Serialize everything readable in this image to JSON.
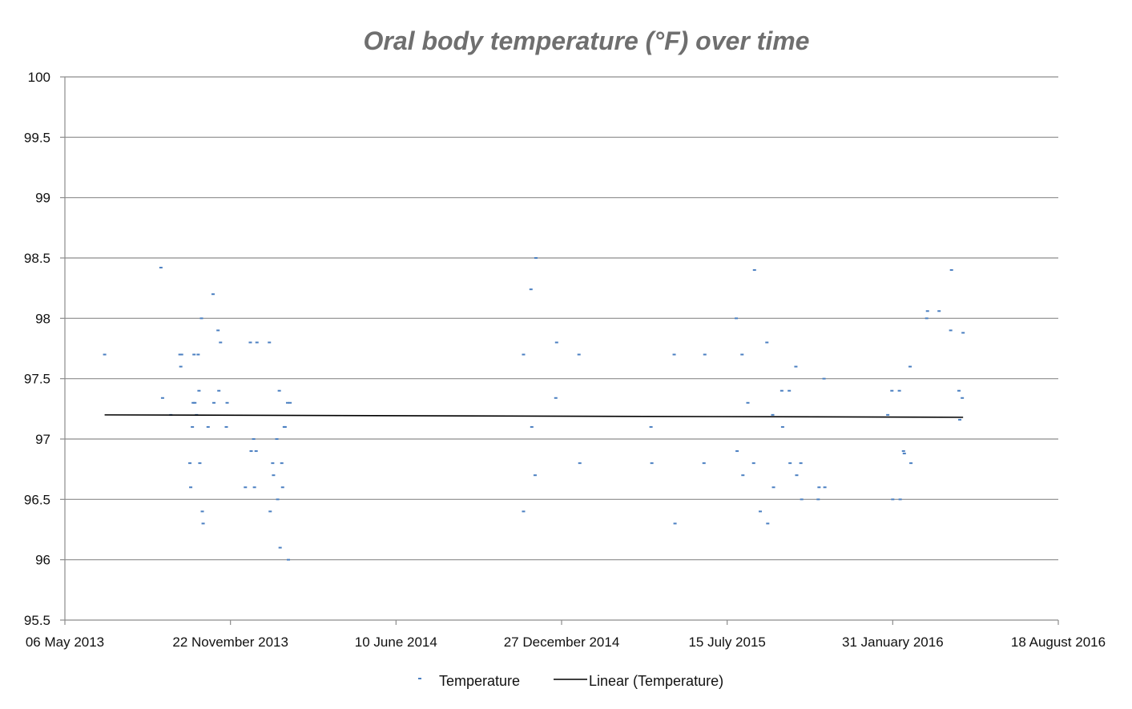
{
  "chart_data": {
    "type": "scatter",
    "title": "Oral body temperature (°F) over time",
    "xlabel": "",
    "ylabel": "",
    "ylim": [
      95.5,
      100
    ],
    "yticks": [
      "95.5",
      "96",
      "96.5",
      "97",
      "97.5",
      "98",
      "98.5",
      "99",
      "99.5",
      "100"
    ],
    "xlim": [
      "2013-05-06",
      "2016-08-18"
    ],
    "xticks": [
      {
        "date": "2013-05-06",
        "label": "06 May 2013"
      },
      {
        "date": "2013-11-22",
        "label": "22 November 2013"
      },
      {
        "date": "2014-06-10",
        "label": "10 June 2014"
      },
      {
        "date": "2014-12-27",
        "label": "27 December 2014"
      },
      {
        "date": "2015-07-15",
        "label": "15 July 2015"
      },
      {
        "date": "2016-01-31",
        "label": "31 January 2016"
      },
      {
        "date": "2016-08-18",
        "label": "18 August 2016"
      }
    ],
    "grid": true,
    "legend_position": "bottom",
    "colors": {
      "marker": "#4a7fc1",
      "trendline": "#000000",
      "grid": "#8c8c8c"
    },
    "series": [
      {
        "name": "Temperature",
        "type": "scatter",
        "points": [
          [
            "2013-06-23",
            97.7
          ],
          [
            "2013-08-30",
            98.42
          ],
          [
            "2013-09-01",
            97.34
          ],
          [
            "2013-09-11",
            97.2
          ],
          [
            "2013-09-22",
            97.7
          ],
          [
            "2013-09-23",
            97.6
          ],
          [
            "2013-09-24",
            97.7
          ],
          [
            "2013-10-04",
            96.8
          ],
          [
            "2013-10-05",
            96.6
          ],
          [
            "2013-10-07",
            97.1
          ],
          [
            "2013-10-08",
            97.3
          ],
          [
            "2013-10-09",
            97.7
          ],
          [
            "2013-10-10",
            97.3
          ],
          [
            "2013-10-12",
            97.2
          ],
          [
            "2013-10-14",
            97.7
          ],
          [
            "2013-10-15",
            97.4
          ],
          [
            "2013-10-16",
            96.8
          ],
          [
            "2013-10-18",
            98.0
          ],
          [
            "2013-10-19",
            96.4
          ],
          [
            "2013-10-20",
            96.3
          ],
          [
            "2013-10-26",
            97.1
          ],
          [
            "2013-11-01",
            98.2
          ],
          [
            "2013-11-02",
            97.3
          ],
          [
            "2013-11-07",
            97.9
          ],
          [
            "2013-11-08",
            97.4
          ],
          [
            "2013-11-10",
            97.8
          ],
          [
            "2013-11-17",
            97.1
          ],
          [
            "2013-11-18",
            97.3
          ],
          [
            "2013-12-10",
            96.6
          ],
          [
            "2013-12-16",
            97.8
          ],
          [
            "2013-12-17",
            96.9
          ],
          [
            "2013-12-20",
            97.0
          ],
          [
            "2013-12-21",
            96.6
          ],
          [
            "2013-12-23",
            96.9
          ],
          [
            "2013-12-24",
            97.8
          ],
          [
            "2014-01-08",
            97.8
          ],
          [
            "2014-01-09",
            96.4
          ],
          [
            "2014-01-12",
            96.8
          ],
          [
            "2014-01-13",
            96.7
          ],
          [
            "2014-01-17",
            97.0
          ],
          [
            "2014-01-18",
            96.5
          ],
          [
            "2014-01-20",
            97.4
          ],
          [
            "2014-01-21",
            96.1
          ],
          [
            "2014-01-23",
            96.8
          ],
          [
            "2014-01-24",
            96.6
          ],
          [
            "2014-01-26",
            97.1
          ],
          [
            "2014-01-27",
            97.1
          ],
          [
            "2014-01-30",
            97.3
          ],
          [
            "2014-01-31",
            96.0
          ],
          [
            "2014-02-02",
            97.3
          ],
          [
            "2014-11-11",
            97.7
          ],
          [
            "2014-11-11",
            96.4
          ],
          [
            "2014-11-20",
            98.24
          ],
          [
            "2014-11-21",
            97.1
          ],
          [
            "2014-11-25",
            96.7
          ],
          [
            "2014-11-26",
            98.5
          ],
          [
            "2014-12-20",
            97.34
          ],
          [
            "2014-12-21",
            97.8
          ],
          [
            "2015-01-17",
            97.7
          ],
          [
            "2015-01-18",
            96.8
          ],
          [
            "2015-04-14",
            97.1
          ],
          [
            "2015-04-15",
            96.8
          ],
          [
            "2015-05-12",
            97.7
          ],
          [
            "2015-05-13",
            96.3
          ],
          [
            "2015-06-17",
            96.8
          ],
          [
            "2015-06-18",
            97.7
          ],
          [
            "2015-07-26",
            98.0
          ],
          [
            "2015-07-27",
            96.9
          ],
          [
            "2015-08-02",
            97.7
          ],
          [
            "2015-08-03",
            96.7
          ],
          [
            "2015-08-09",
            97.3
          ],
          [
            "2015-08-16",
            96.8
          ],
          [
            "2015-08-17",
            98.4
          ],
          [
            "2015-08-24",
            96.4
          ],
          [
            "2015-09-01",
            97.8
          ],
          [
            "2015-09-02",
            96.3
          ],
          [
            "2015-09-08",
            97.2
          ],
          [
            "2015-09-09",
            96.6
          ],
          [
            "2015-09-19",
            97.4
          ],
          [
            "2015-09-20",
            97.1
          ],
          [
            "2015-09-28",
            97.4
          ],
          [
            "2015-09-29",
            96.8
          ],
          [
            "2015-10-06",
            97.6
          ],
          [
            "2015-10-07",
            96.7
          ],
          [
            "2015-10-12",
            96.8
          ],
          [
            "2015-10-13",
            96.5
          ],
          [
            "2015-11-02",
            96.5
          ],
          [
            "2015-11-03",
            96.6
          ],
          [
            "2015-11-09",
            97.5
          ],
          [
            "2015-11-10",
            96.6
          ],
          [
            "2016-01-25",
            97.2
          ],
          [
            "2016-01-30",
            97.4
          ],
          [
            "2016-01-31",
            96.5
          ],
          [
            "2016-02-08",
            97.4
          ],
          [
            "2016-02-09",
            96.5
          ],
          [
            "2016-02-13",
            96.9
          ],
          [
            "2016-02-14",
            96.88
          ],
          [
            "2016-02-21",
            97.6
          ],
          [
            "2016-02-22",
            96.8
          ],
          [
            "2016-03-12",
            98.0
          ],
          [
            "2016-03-13",
            98.06
          ],
          [
            "2016-03-27",
            98.06
          ],
          [
            "2016-04-10",
            97.9
          ],
          [
            "2016-04-11",
            98.4
          ],
          [
            "2016-04-20",
            97.4
          ],
          [
            "2016-04-21",
            97.16
          ],
          [
            "2016-04-24",
            97.34
          ],
          [
            "2016-04-25",
            97.88
          ]
        ]
      },
      {
        "name": "Linear (Temperature)",
        "type": "line",
        "points": [
          [
            "2013-06-23",
            97.2
          ],
          [
            "2016-04-25",
            97.18
          ]
        ]
      }
    ]
  }
}
